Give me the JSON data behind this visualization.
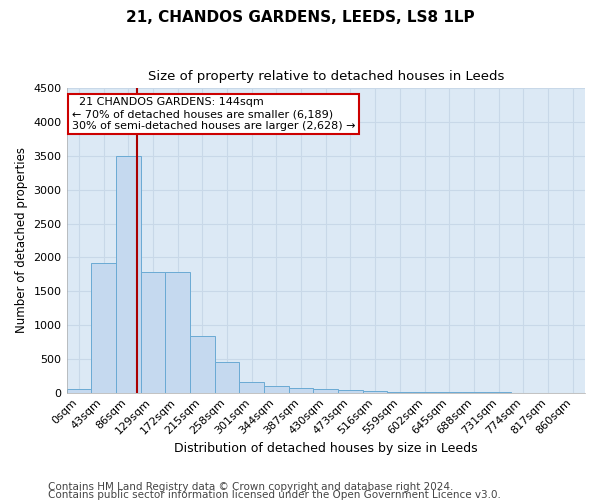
{
  "title1": "21, CHANDOS GARDENS, LEEDS, LS8 1LP",
  "title2": "Size of property relative to detached houses in Leeds",
  "xlabel": "Distribution of detached houses by size in Leeds",
  "ylabel": "Number of detached properties",
  "categories": [
    "0sqm",
    "43sqm",
    "86sqm",
    "129sqm",
    "172sqm",
    "215sqm",
    "258sqm",
    "301sqm",
    "344sqm",
    "387sqm",
    "430sqm",
    "473sqm",
    "516sqm",
    "559sqm",
    "602sqm",
    "645sqm",
    "688sqm",
    "731sqm",
    "774sqm",
    "817sqm",
    "860sqm"
  ],
  "values": [
    50,
    1910,
    3500,
    1780,
    1780,
    840,
    450,
    155,
    100,
    70,
    55,
    35,
    20,
    10,
    5,
    3,
    2,
    2,
    1,
    1,
    0
  ],
  "bar_color": "#c5d9ef",
  "bar_edge_color": "#6aaad4",
  "vline_color": "#aa0000",
  "vline_x": 2.35,
  "annotation_text": "  21 CHANDOS GARDENS: 144sqm\n← 70% of detached houses are smaller (6,189)\n30% of semi-detached houses are larger (2,628) →",
  "annotation_box_color": "#ffffff",
  "annotation_box_edge_color": "#cc0000",
  "ylim": [
    0,
    4500
  ],
  "yticks": [
    0,
    500,
    1000,
    1500,
    2000,
    2500,
    3000,
    3500,
    4000,
    4500
  ],
  "grid_color": "#c8d8e8",
  "background_color": "#dce9f5",
  "footer1": "Contains HM Land Registry data © Crown copyright and database right 2024.",
  "footer2": "Contains public sector information licensed under the Open Government Licence v3.0.",
  "title1_fontsize": 11,
  "title2_fontsize": 9.5,
  "xlabel_fontsize": 9,
  "ylabel_fontsize": 8.5,
  "tick_fontsize": 8,
  "footer_fontsize": 7.5
}
